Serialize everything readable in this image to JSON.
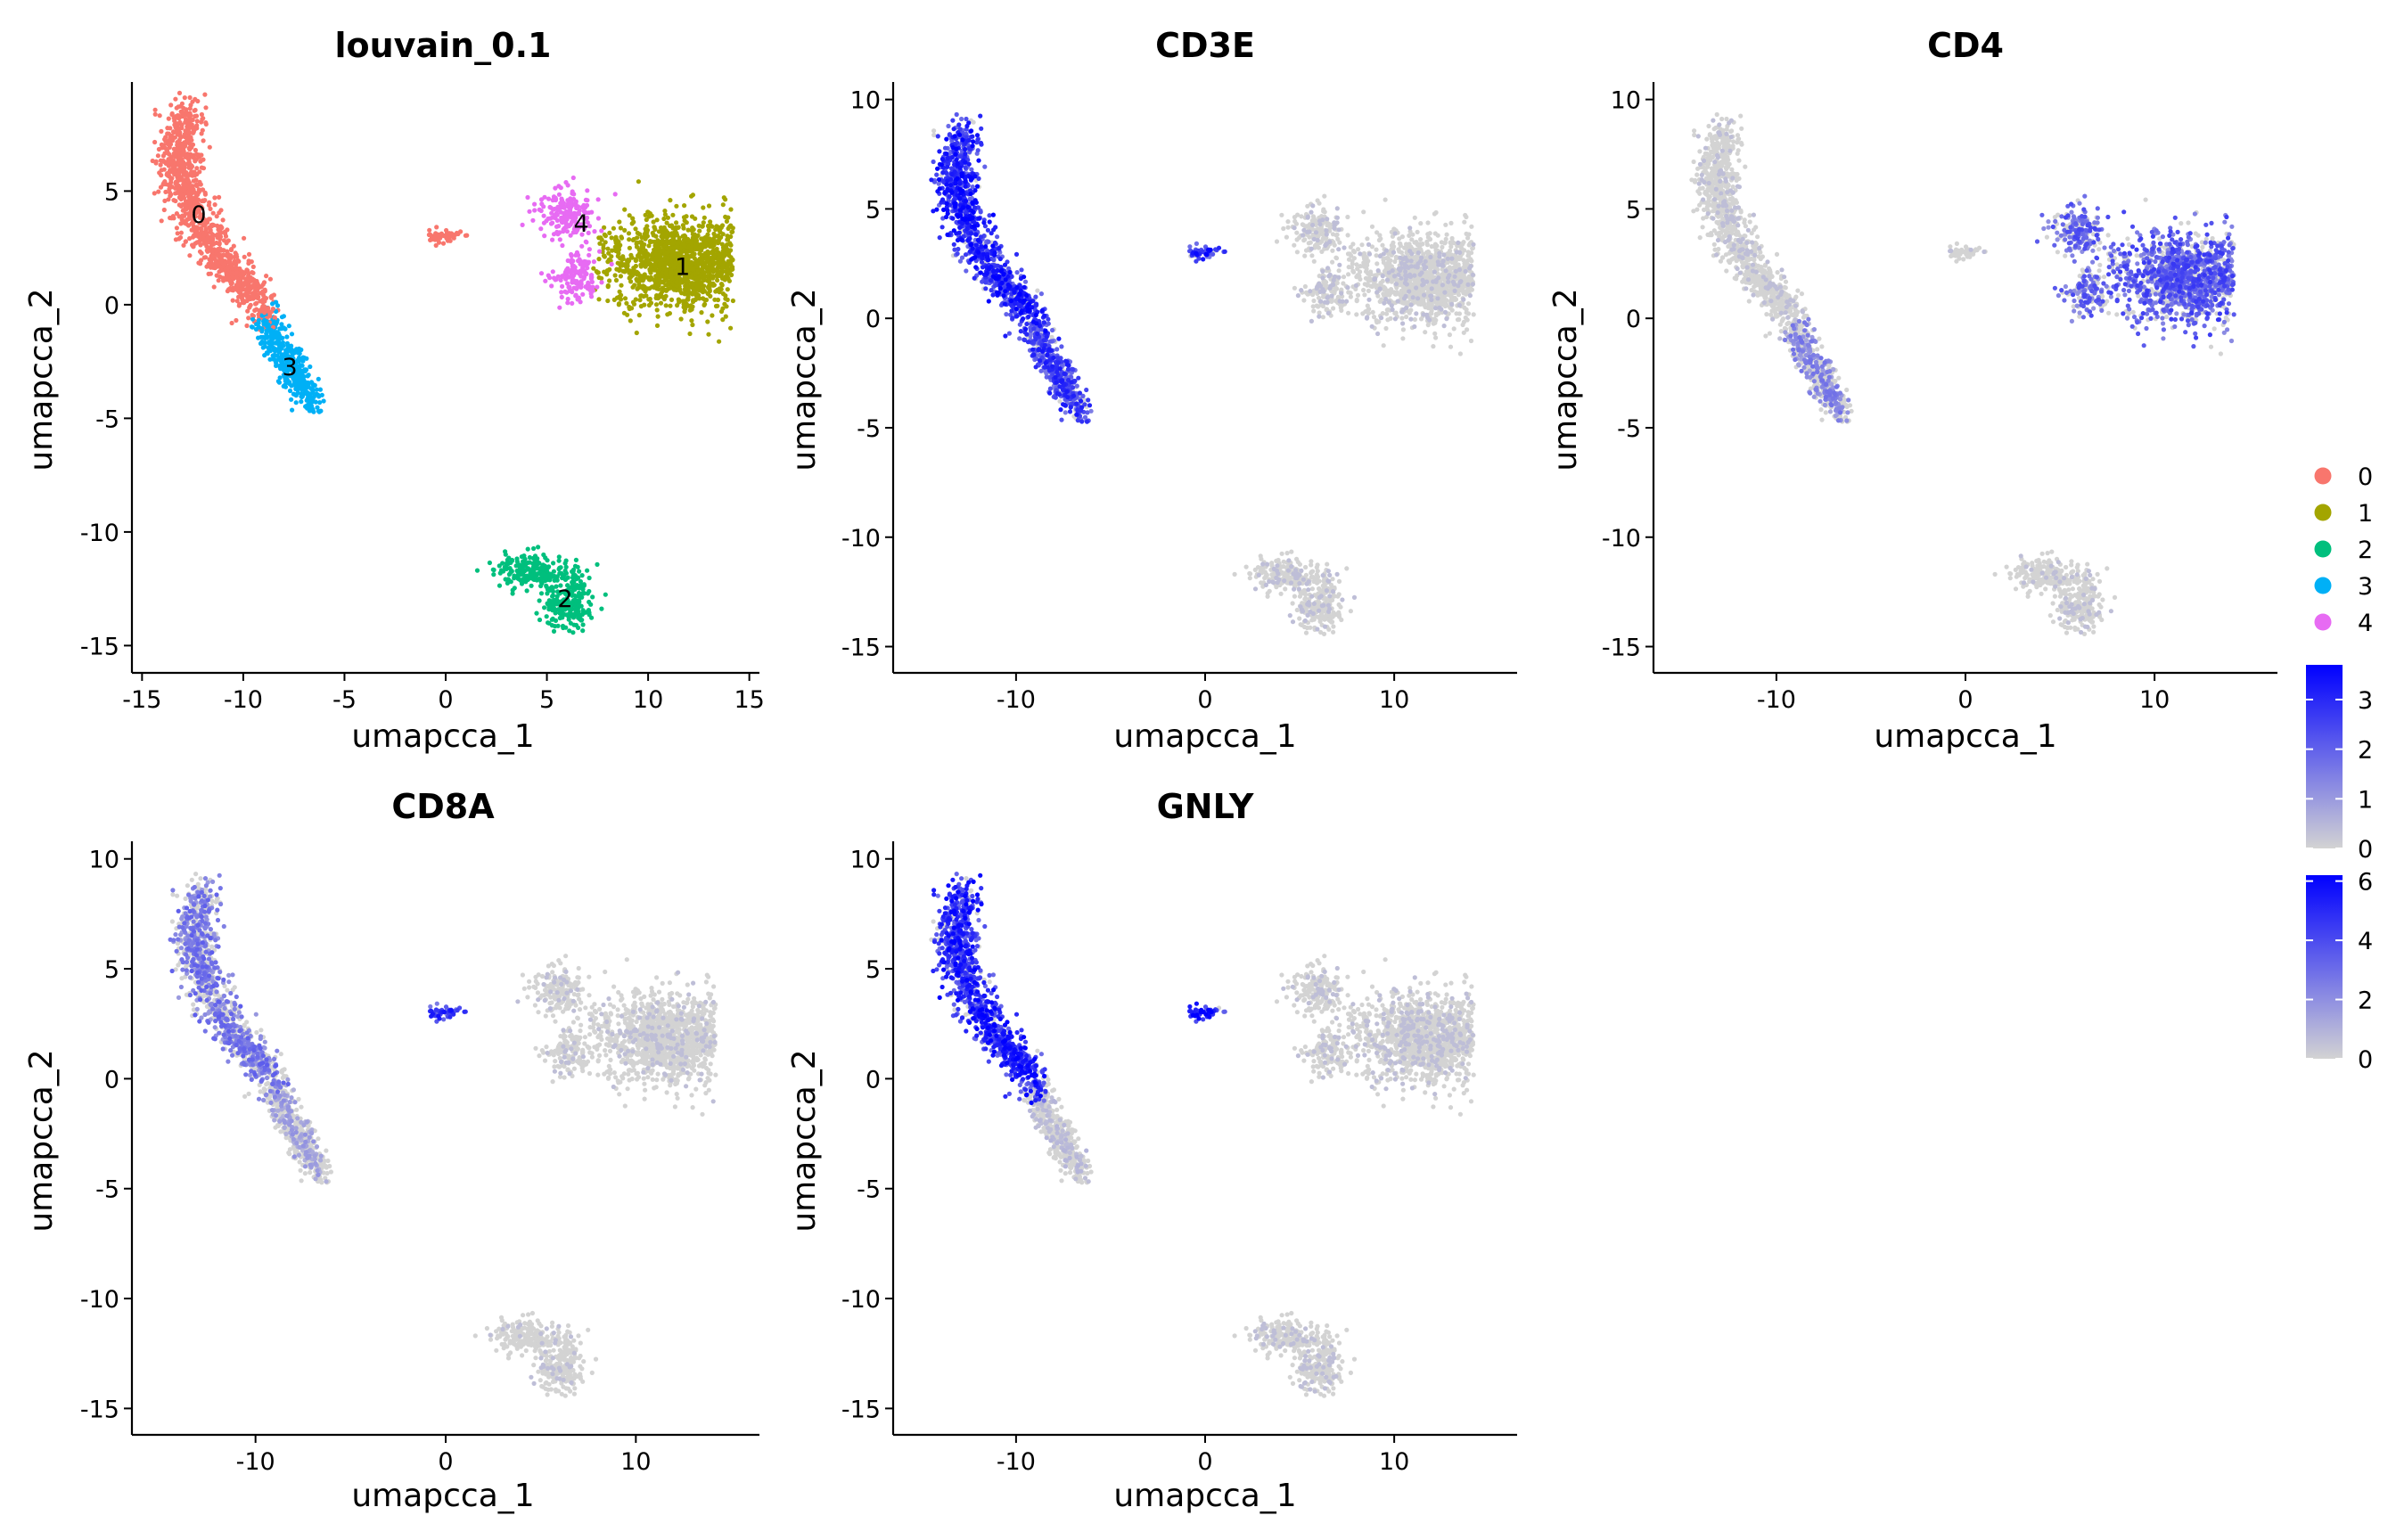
{
  "figure_layout": "2x3 grid of UMAP embeddings, 5 panels, shared legends at right",
  "colors": {
    "cluster_palette": [
      "#F8766D",
      "#A3A500",
      "#00BF7D",
      "#00B0F6",
      "#E76BF3"
    ],
    "expression_low": "#D3D3D3",
    "expression_high": "#0000FF",
    "axis": "#000000"
  },
  "legend": {
    "clusters": {
      "labels": [
        "0",
        "1",
        "2",
        "3",
        "4"
      ]
    },
    "colorbars": [
      {
        "max": 3.7,
        "ticks": [
          "3",
          "2",
          "1",
          "0"
        ],
        "tick_values": [
          3,
          2,
          1,
          0
        ]
      },
      {
        "max": 6.2,
        "ticks": [
          "6",
          "4",
          "2",
          "0"
        ],
        "tick_values": [
          6,
          4,
          2,
          0
        ]
      }
    ]
  },
  "chart_data": [
    {
      "type": "scatter",
      "title": "louvain_0.1",
      "coloring": "cluster",
      "xlabel": "umapcca_1",
      "ylabel": "umapcca_2",
      "xlim": [
        -15.5,
        15.5
      ],
      "ylim": [
        -16.2,
        9.8
      ],
      "x_ticks": [
        "-15",
        "-10",
        "-5",
        "0",
        "5",
        "10",
        "15"
      ],
      "x_tick_values": [
        -15,
        -10,
        -5,
        0,
        5,
        10,
        15
      ],
      "y_ticks": [
        "5",
        "0",
        "-5",
        "-10",
        "-15"
      ],
      "y_tick_values": [
        5,
        0,
        -5,
        -10,
        -15
      ],
      "cluster_labels": [
        {
          "text": "0",
          "x": -12.2,
          "y": 4.0
        },
        {
          "text": "1",
          "x": 11.7,
          "y": 1.7
        },
        {
          "text": "2",
          "x": 5.9,
          "y": -12.9
        },
        {
          "text": "3",
          "x": -7.7,
          "y": -2.7
        },
        {
          "text": "4",
          "x": 6.7,
          "y": 3.6
        }
      ]
    },
    {
      "type": "scatter",
      "title": "CD3E",
      "coloring": "expression",
      "xlabel": "umapcca_1",
      "ylabel": "umapcca_2",
      "xlim": [
        -16.5,
        16.5
      ],
      "ylim": [
        -16.2,
        10.8
      ],
      "x_ticks": [
        "-10",
        "0",
        "10"
      ],
      "x_tick_values": [
        -10,
        0,
        10
      ],
      "y_ticks": [
        "10",
        "5",
        "0",
        "-5",
        "-10",
        "-15"
      ],
      "y_tick_values": [
        10,
        5,
        0,
        -5,
        -10,
        -15
      ],
      "expression_by_cluster": [
        0.82,
        0.05,
        0.08,
        0.72,
        0.08
      ],
      "island_expression": 0.8
    },
    {
      "type": "scatter",
      "title": "CD4",
      "coloring": "expression",
      "xlabel": "umapcca_1",
      "ylabel": "umapcca_2",
      "xlim": [
        -16.5,
        16.5
      ],
      "ylim": [
        -16.2,
        10.8
      ],
      "x_ticks": [
        "-10",
        "0",
        "10"
      ],
      "x_tick_values": [
        -10,
        0,
        10
      ],
      "y_ticks": [
        "10",
        "5",
        "0",
        "-5",
        "-10",
        "-15"
      ],
      "y_tick_values": [
        10,
        5,
        0,
        -5,
        -10,
        -15
      ],
      "expression_by_cluster": [
        0.06,
        0.6,
        0.03,
        0.38,
        0.55
      ],
      "island_expression": 0.02
    },
    {
      "type": "scatter",
      "title": "CD8A",
      "coloring": "expression",
      "xlabel": "umapcca_1",
      "ylabel": "umapcca_2",
      "xlim": [
        -16.5,
        16.5
      ],
      "ylim": [
        -16.2,
        10.8
      ],
      "x_ticks": [
        "-10",
        "0",
        "10"
      ],
      "x_tick_values": [
        -10,
        0,
        10
      ],
      "y_ticks": [
        "10",
        "5",
        "0",
        "-5",
        "-10",
        "-15"
      ],
      "y_tick_values": [
        10,
        5,
        0,
        -5,
        -10,
        -15
      ],
      "expression_by_cluster": [
        0.45,
        0.03,
        0.03,
        0.25,
        0.05
      ],
      "island_expression": 0.75
    },
    {
      "type": "scatter",
      "title": "GNLY",
      "coloring": "expression",
      "xlabel": "umapcca_1",
      "ylabel": "umapcca_2",
      "xlim": [
        -16.5,
        16.5
      ],
      "ylim": [
        -16.2,
        10.8
      ],
      "x_ticks": [
        "-10",
        "0",
        "10"
      ],
      "x_tick_values": [
        -10,
        0,
        10
      ],
      "y_ticks": [
        "10",
        "5",
        "0",
        "-5",
        "-10",
        "-15"
      ],
      "y_tick_values": [
        10,
        5,
        0,
        -5,
        -10,
        -15
      ],
      "expression_by_cluster": [
        0.82,
        0.08,
        0.08,
        0.12,
        0.08
      ],
      "island_expression": 0.85
    }
  ]
}
